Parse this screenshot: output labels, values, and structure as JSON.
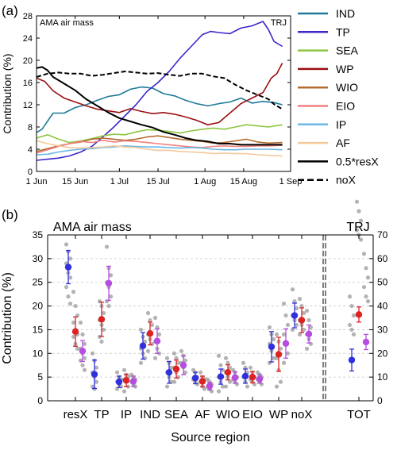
{
  "chart_data": [
    {
      "panel": "(a)",
      "type": "line",
      "header_left": "AMA air mass",
      "header_right": "TRJ",
      "ylabel": "Contribution (%)",
      "xlabel": "",
      "ylim": [
        0,
        28
      ],
      "yticks": [
        "0",
        "4",
        "8",
        "12",
        "16",
        "20",
        "24",
        "28"
      ],
      "xlim": [
        0,
        92
      ],
      "xticks": [
        {
          "label": "1 Jun",
          "day": 0
        },
        {
          "label": "15 Jun",
          "day": 14
        },
        {
          "label": "1 Jul",
          "day": 30
        },
        {
          "label": "15 Jul",
          "day": 44
        },
        {
          "label": "1 Aug",
          "day": 61
        },
        {
          "label": "15 Aug",
          "day": 75
        },
        {
          "label": "1 Sep",
          "day": 92
        }
      ],
      "grid": false,
      "legend_position": "right",
      "series": [
        {
          "name": "IND",
          "color": "#1f7a99",
          "dash": "solid",
          "x": [
            0,
            2,
            6,
            10,
            14,
            18,
            22,
            26,
            30,
            34,
            38,
            42,
            46,
            50,
            54,
            58,
            62,
            66,
            70,
            74,
            78,
            82,
            86,
            89
          ],
          "y": [
            7,
            7.6,
            10.5,
            10.5,
            11.5,
            12,
            12.8,
            13.5,
            13.8,
            14.8,
            15.2,
            15,
            14,
            13.6,
            12.8,
            12.2,
            11.8,
            12.2,
            12.5,
            13.2,
            12.3,
            12.6,
            12.4,
            12
          ]
        },
        {
          "name": "TP",
          "color": "#3d28c8",
          "dash": "solid",
          "x": [
            0,
            4,
            8,
            12,
            16,
            20,
            24,
            28,
            32,
            36,
            40,
            44,
            48,
            52,
            56,
            60,
            63,
            66,
            70,
            74,
            78,
            82,
            84,
            86,
            89
          ],
          "y": [
            2,
            2.2,
            2.4,
            2.8,
            3.5,
            4.5,
            6.2,
            8,
            10,
            12,
            14.4,
            16,
            18,
            20.4,
            22.5,
            24.6,
            25.2,
            25,
            24.8,
            25.8,
            26.2,
            27,
            25.5,
            23.4,
            22.5
          ]
        },
        {
          "name": "SEA",
          "color": "#8dc63f",
          "dash": "solid",
          "x": [
            0,
            4,
            8,
            12,
            16,
            20,
            24,
            28,
            32,
            36,
            40,
            44,
            48,
            52,
            56,
            60,
            64,
            68,
            72,
            76,
            80,
            84,
            89
          ],
          "y": [
            6,
            6.6,
            5.8,
            5.2,
            5.5,
            5.9,
            6.4,
            6.7,
            6.6,
            7.1,
            7.5,
            7.4,
            7.2,
            6.9,
            7.3,
            7.6,
            7.8,
            7.6,
            8,
            8.4,
            8.2,
            8,
            8.4
          ]
        },
        {
          "name": "WP",
          "color": "#9b0e12",
          "dash": "solid",
          "x": [
            0,
            3,
            6,
            10,
            14,
            18,
            22,
            26,
            30,
            34,
            38,
            42,
            46,
            50,
            54,
            58,
            62,
            66,
            70,
            74,
            78,
            82,
            85,
            87,
            89
          ],
          "y": [
            16.8,
            16.2,
            14.5,
            13.2,
            12.5,
            11.8,
            11.2,
            10.9,
            10.6,
            11.3,
            10.8,
            10.4,
            10.6,
            10.3,
            9.8,
            9.2,
            8.4,
            8.8,
            10.5,
            12.2,
            13.2,
            14.2,
            16.8,
            17.6,
            19.5
          ]
        },
        {
          "name": "WIO",
          "color": "#b36b2e",
          "dash": "solid",
          "x": [
            0,
            4,
            8,
            12,
            16,
            20,
            24,
            28,
            32,
            36,
            40,
            44,
            48,
            52,
            56,
            60,
            64,
            68,
            72,
            76,
            80,
            84,
            89
          ],
          "y": [
            3.6,
            4.1,
            4.6,
            5,
            5.3,
            5.8,
            6,
            5.8,
            5.6,
            5.8,
            6.2,
            6.4,
            6.1,
            5.8,
            5.6,
            5.4,
            5.1,
            5.2,
            5.5,
            5.8,
            5.3,
            5.1,
            5.2
          ]
        },
        {
          "name": "EIO",
          "color": "#f08080",
          "dash": "solid",
          "x": [
            0,
            4,
            8,
            12,
            16,
            20,
            24,
            28,
            32,
            36,
            40,
            44,
            48,
            52,
            56,
            60,
            64,
            68,
            72,
            76,
            80,
            84,
            89
          ],
          "y": [
            3.3,
            3.9,
            4.5,
            5,
            5.4,
            5.2,
            5.6,
            5.3,
            5.5,
            5.4,
            5.2,
            5,
            4.8,
            4.6,
            4.4,
            4.3,
            4.5,
            4.6,
            4.5,
            4.5,
            4.6,
            4.6,
            4.7
          ]
        },
        {
          "name": "IP",
          "color": "#6ab7e6",
          "dash": "solid",
          "x": [
            0,
            4,
            8,
            12,
            16,
            20,
            24,
            28,
            32,
            36,
            40,
            44,
            48,
            52,
            56,
            60,
            64,
            68,
            72,
            76,
            80,
            84,
            89
          ],
          "y": [
            3,
            3.1,
            3.5,
            3.8,
            4,
            4.1,
            4.3,
            4.4,
            4.6,
            4.5,
            4.4,
            4.4,
            4.3,
            4.2,
            4.3,
            4.2,
            4,
            3.9,
            3.9,
            4,
            4,
            4,
            3.9
          ]
        },
        {
          "name": "AF",
          "color": "#f5c89a",
          "dash": "solid",
          "x": [
            0,
            4,
            8,
            12,
            16,
            20,
            24,
            28,
            32,
            36,
            40,
            44,
            48,
            52,
            56,
            60,
            64,
            68,
            72,
            76,
            80,
            84,
            89
          ],
          "y": [
            5.5,
            5,
            4.6,
            4.3,
            4.2,
            4.3,
            4.4,
            4.6,
            4.4,
            4.3,
            4,
            3.8,
            3.8,
            3.6,
            3.5,
            3.4,
            3.2,
            3.3,
            3.2,
            3.2,
            3,
            2.9,
            2.8
          ]
        },
        {
          "name": "0.5*resX",
          "color": "#000000",
          "dash": "solid",
          "x": [
            0,
            2,
            4,
            6,
            10,
            14,
            18,
            22,
            26,
            30,
            34,
            38,
            42,
            46,
            50,
            54,
            58,
            62,
            66,
            70,
            74,
            78,
            82,
            86,
            89
          ],
          "y": [
            18.6,
            18.8,
            18.2,
            17,
            15.8,
            14.6,
            13,
            11.8,
            10.6,
            9.6,
            9,
            8.4,
            7.9,
            7.1,
            6.6,
            6,
            5.6,
            5.4,
            5,
            5,
            4.8,
            4.8,
            4.8,
            4.8,
            4.8
          ]
        },
        {
          "name": "noX",
          "color": "#000000",
          "dash": "dashed",
          "x": [
            0,
            4,
            8,
            12,
            16,
            20,
            24,
            28,
            32,
            36,
            40,
            44,
            48,
            52,
            56,
            60,
            64,
            68,
            72,
            76,
            80,
            84,
            86,
            89
          ],
          "y": [
            17,
            17.6,
            17.8,
            17.6,
            17.6,
            17.2,
            17.4,
            17.7,
            18,
            17.8,
            17.6,
            17.7,
            17.4,
            17.2,
            17.6,
            17.6,
            17.1,
            16.8,
            15.6,
            14.6,
            13.8,
            13,
            12.1,
            11.2
          ]
        }
      ]
    },
    {
      "panel": "(b)",
      "type": "scatter",
      "header_left": "AMA air mass",
      "header_right": "TRJ",
      "xlabel": "Source region",
      "ylabel": "Contribution (%)",
      "ylim": [
        0,
        35
      ],
      "yticks": [
        "0",
        "5",
        "10",
        "15",
        "20",
        "25",
        "30",
        "35"
      ],
      "ylim_right": [
        0,
        70
      ],
      "yticks_right": [
        "0",
        "10",
        "20",
        "30",
        "40",
        "50",
        "60",
        "70"
      ],
      "grid": "horizontal dashed",
      "categories": [
        "resX",
        "TP",
        "IP",
        "IND",
        "SEA",
        "AF",
        "WIO",
        "EIO",
        "WP",
        "noX",
        "TOT"
      ],
      "series_colors": [
        "#3030dd",
        "#dd2222",
        "#b44de0"
      ],
      "means": [
        [
          28.2,
          14.6,
          10.5
        ],
        [
          5.6,
          17.2,
          24.8
        ],
        [
          4.0,
          4.3,
          4.1
        ],
        [
          11.6,
          14.2,
          12.6
        ],
        [
          6.0,
          6.7,
          7.5
        ],
        [
          4.8,
          4.1,
          3.1
        ],
        [
          5.1,
          6.0,
          4.9
        ],
        [
          5.2,
          5.0,
          4.6
        ],
        [
          11.4,
          9.8,
          12.1
        ],
        [
          18.0,
          17.0,
          14.1
        ],
        [
          8.6,
          18.2,
          12.4
        ]
      ],
      "errors": [
        [
          3.5,
          3.1,
          2.2
        ],
        [
          3.0,
          3.6,
          3.6
        ],
        [
          1.2,
          1.3,
          1.1
        ],
        [
          2.8,
          2.4,
          2.6
        ],
        [
          2.3,
          1.9,
          2.0
        ],
        [
          1.2,
          1.1,
          0.8
        ],
        [
          1.6,
          1.6,
          1.2
        ],
        [
          1.5,
          1.2,
          0.9
        ],
        [
          3.2,
          3.6,
          3.1
        ],
        [
          2.6,
          2.6,
          1.9
        ],
        [
          2.3,
          1.6,
          1.6
        ]
      ],
      "members": [
        [
          33,
          31.5,
          30,
          29,
          27,
          26,
          24,
          22,
          20.5
        ],
        [
          23,
          20,
          18,
          16.5,
          15,
          14,
          13.5,
          12,
          11
        ],
        [
          16.5,
          14,
          12,
          11,
          10,
          9,
          8.5,
          7.5,
          6.5
        ],
        [
          10,
          8.5,
          7,
          6,
          5,
          4,
          3,
          2.5
        ],
        [
          21,
          20,
          18.5,
          17,
          16,
          15,
          13.5,
          12.5
        ],
        [
          32.5,
          28,
          26.5,
          25,
          24,
          22,
          21,
          20
        ],
        [
          6,
          5,
          4.5,
          4,
          3.5,
          3,
          2.5
        ],
        [
          6.5,
          5.5,
          5,
          4.5,
          4,
          3,
          2
        ],
        [
          5.5,
          5,
          4.5,
          4,
          3.5,
          3
        ],
        [
          15,
          13.5,
          12.5,
          11,
          10,
          9,
          8
        ],
        [
          18.5,
          17,
          16,
          14,
          13,
          12,
          10.5
        ],
        [
          17.5,
          15.5,
          14,
          12.5,
          11,
          10,
          9
        ],
        [
          9,
          8,
          7,
          6,
          5,
          4,
          3
        ],
        [
          10,
          9,
          8,
          7,
          6,
          5,
          4
        ],
        [
          10.5,
          9.5,
          8.5,
          8,
          7,
          6
        ],
        [
          6.5,
          6,
          5,
          4.5,
          4,
          3.5
        ],
        [
          6,
          5,
          4.5,
          4,
          3,
          2.5
        ],
        [
          4.5,
          4,
          3.5,
          3,
          2.5,
          2
        ],
        [
          9.5,
          7.5,
          6.5,
          5,
          4,
          3,
          2
        ],
        [
          9,
          8,
          7,
          6,
          5,
          4,
          3
        ],
        [
          6.5,
          6,
          5,
          4.5,
          4,
          3.5
        ],
        [
          8,
          7,
          6,
          5,
          4,
          3
        ],
        [
          7,
          6,
          5,
          4.5,
          4,
          3.5
        ],
        [
          6,
          5.5,
          5,
          4.5,
          4,
          3.5
        ],
        [
          15.5,
          14,
          13,
          12,
          10.5,
          9,
          8
        ],
        [
          14,
          12.5,
          11,
          9,
          6.5,
          4,
          3
        ],
        [
          20.5,
          18,
          16,
          14,
          12,
          10,
          8
        ],
        [
          23.5,
          21,
          19.5,
          18,
          17,
          16,
          15
        ],
        [
          21.5,
          20,
          18.5,
          17,
          16,
          15,
          14
        ],
        [
          19,
          17,
          15.5,
          14,
          13,
          12,
          11
        ],
        [
          22,
          20,
          18,
          16,
          15,
          14
        ],
        [
          42,
          40,
          38,
          36,
          35,
          34
        ],
        [
          31,
          28,
          26,
          24,
          22,
          21
        ]
      ]
    }
  ]
}
